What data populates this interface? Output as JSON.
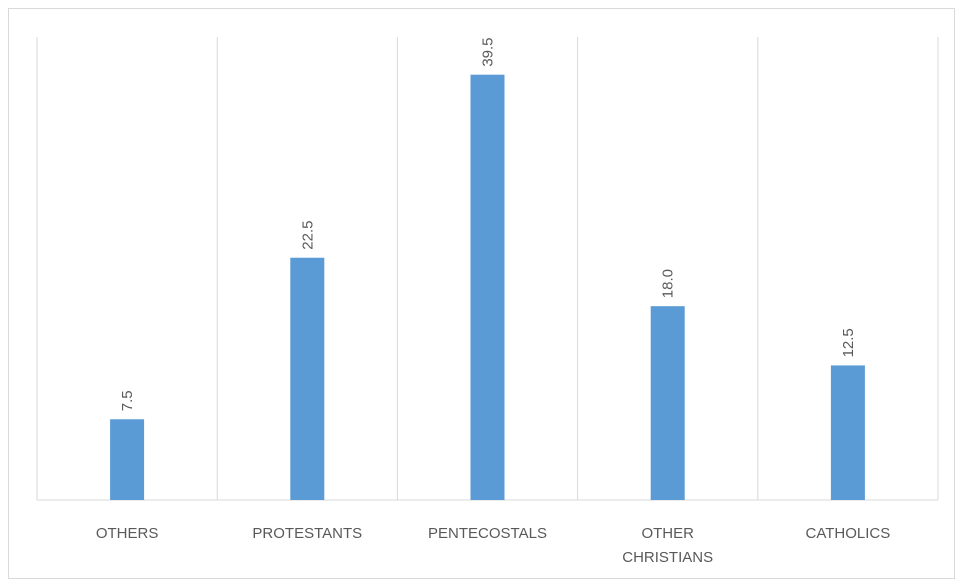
{
  "chart_data": {
    "type": "bar",
    "categories": [
      "OTHERS",
      "PROTESTANTS",
      "PENTECOSTALS",
      "OTHER CHRISTIANS",
      "CATHOLICS"
    ],
    "category_lines": [
      [
        "OTHERS"
      ],
      [
        "PROTESTANTS"
      ],
      [
        "PENTECOSTALS"
      ],
      [
        "OTHER",
        "CHRISTIANS"
      ],
      [
        "CATHOLICS"
      ]
    ],
    "values": [
      7.5,
      22.5,
      39.5,
      18.0,
      12.5
    ],
    "value_labels": [
      "7.5",
      "22.5",
      "39.5",
      "18.0",
      "12.5"
    ],
    "title": "",
    "xlabel": "",
    "ylabel": "",
    "ylim": [
      0,
      43
    ],
    "grid": "vertical category separators",
    "legend": "none",
    "bar_color": "#5b9bd5",
    "axis_color": "#d9d9d9",
    "text_color": "#595959"
  }
}
